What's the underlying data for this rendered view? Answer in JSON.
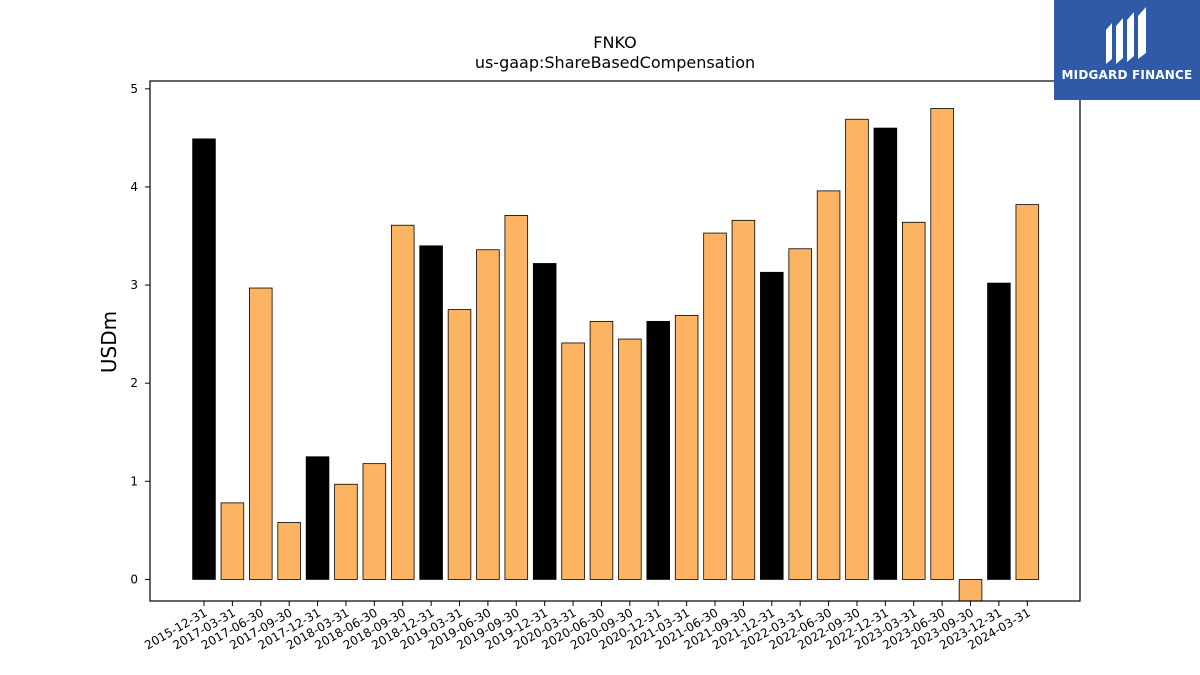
{
  "chart_data": {
    "type": "bar",
    "title": "FNKO",
    "subtitle": "us-gaap:ShareBasedCompensation",
    "xlabel": "",
    "ylabel": "USDm",
    "ylim": [
      -0.22,
      5.08
    ],
    "yticks": [
      "0",
      "1",
      "2",
      "3",
      "4",
      "5"
    ],
    "grid": false,
    "colors": {
      "quarter": "#fdb462",
      "annual": "#000000",
      "edge": "#000000"
    },
    "categories": [
      "2015-12-31",
      "2017-03-31",
      "2017-06-30",
      "2017-09-30",
      "2017-12-31",
      "2018-03-31",
      "2018-06-30",
      "2018-09-30",
      "2018-12-31",
      "2019-03-31",
      "2019-06-30",
      "2019-09-30",
      "2019-12-31",
      "2020-03-31",
      "2020-06-30",
      "2020-09-30",
      "2020-12-31",
      "2021-03-31",
      "2021-06-30",
      "2021-09-30",
      "2021-12-31",
      "2022-03-31",
      "2022-06-30",
      "2022-09-30",
      "2022-12-31",
      "2023-03-31",
      "2023-06-30",
      "2023-09-30",
      "2023-12-31",
      "2024-03-31"
    ],
    "values": [
      4.49,
      0.78,
      2.97,
      0.58,
      1.25,
      0.97,
      1.18,
      3.61,
      3.4,
      2.75,
      3.36,
      3.71,
      3.22,
      2.41,
      2.63,
      2.45,
      2.63,
      2.69,
      3.53,
      3.66,
      3.13,
      3.37,
      3.96,
      4.69,
      4.6,
      3.64,
      4.8,
      -0.22,
      3.02,
      3.82
    ],
    "is_annual": [
      true,
      false,
      false,
      false,
      true,
      false,
      false,
      false,
      true,
      false,
      false,
      false,
      true,
      false,
      false,
      false,
      true,
      false,
      false,
      false,
      true,
      false,
      false,
      false,
      true,
      false,
      false,
      false,
      true,
      false
    ]
  },
  "logo": {
    "text": "MIDGARD FINANCE"
  }
}
